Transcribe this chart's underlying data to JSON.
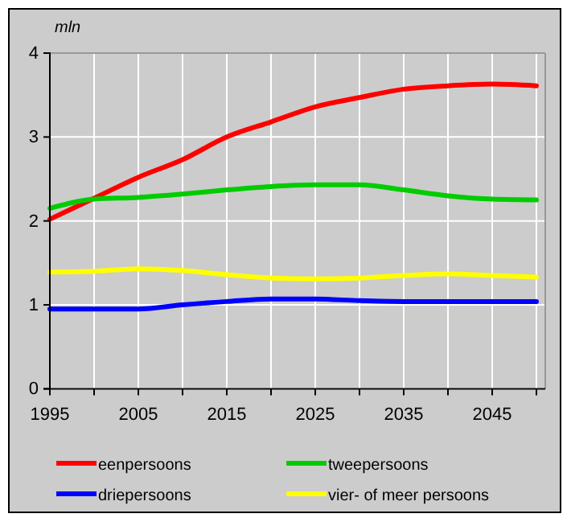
{
  "chart_data": {
    "type": "line",
    "ylabel": "mln",
    "x": [
      1995,
      2000,
      2005,
      2010,
      2015,
      2020,
      2025,
      2030,
      2035,
      2040,
      2045,
      2050
    ],
    "series": [
      {
        "name": "eenpersoons",
        "color": "#ff0000",
        "values": [
          2.02,
          2.27,
          2.52,
          2.73,
          3.0,
          3.18,
          3.36,
          3.47,
          3.57,
          3.61,
          3.63,
          3.61
        ]
      },
      {
        "name": "tweepersoons",
        "color": "#00cc00",
        "values": [
          2.15,
          2.26,
          2.28,
          2.32,
          2.37,
          2.41,
          2.43,
          2.43,
          2.37,
          2.3,
          2.26,
          2.25
        ]
      },
      {
        "name": "driepersoons",
        "color": "#0000ff",
        "values": [
          0.95,
          0.95,
          0.95,
          1.0,
          1.04,
          1.07,
          1.07,
          1.05,
          1.04,
          1.04,
          1.04,
          1.04
        ]
      },
      {
        "name": "vier- of meer persoons",
        "color": "#ffff00",
        "values": [
          1.39,
          1.4,
          1.43,
          1.41,
          1.36,
          1.32,
          1.31,
          1.32,
          1.35,
          1.37,
          1.35,
          1.33
        ]
      }
    ],
    "xlim": [
      1995,
      2051
    ],
    "xticks": [
      1995,
      {
        "value": 2000,
        "label": null
      },
      2005,
      {
        "value": 2010,
        "label": null
      },
      2015,
      {
        "value": 2020,
        "label": null
      },
      2025,
      {
        "value": 2030,
        "label": null
      },
      2035,
      {
        "value": 2040,
        "label": null
      },
      2045,
      {
        "value": 2050,
        "label": null
      }
    ],
    "ylim": [
      0,
      4
    ],
    "yticks": [
      0,
      1,
      2,
      3,
      4
    ],
    "grid": true,
    "legend": "bottom",
    "marker": "none",
    "line_style": "solid"
  }
}
